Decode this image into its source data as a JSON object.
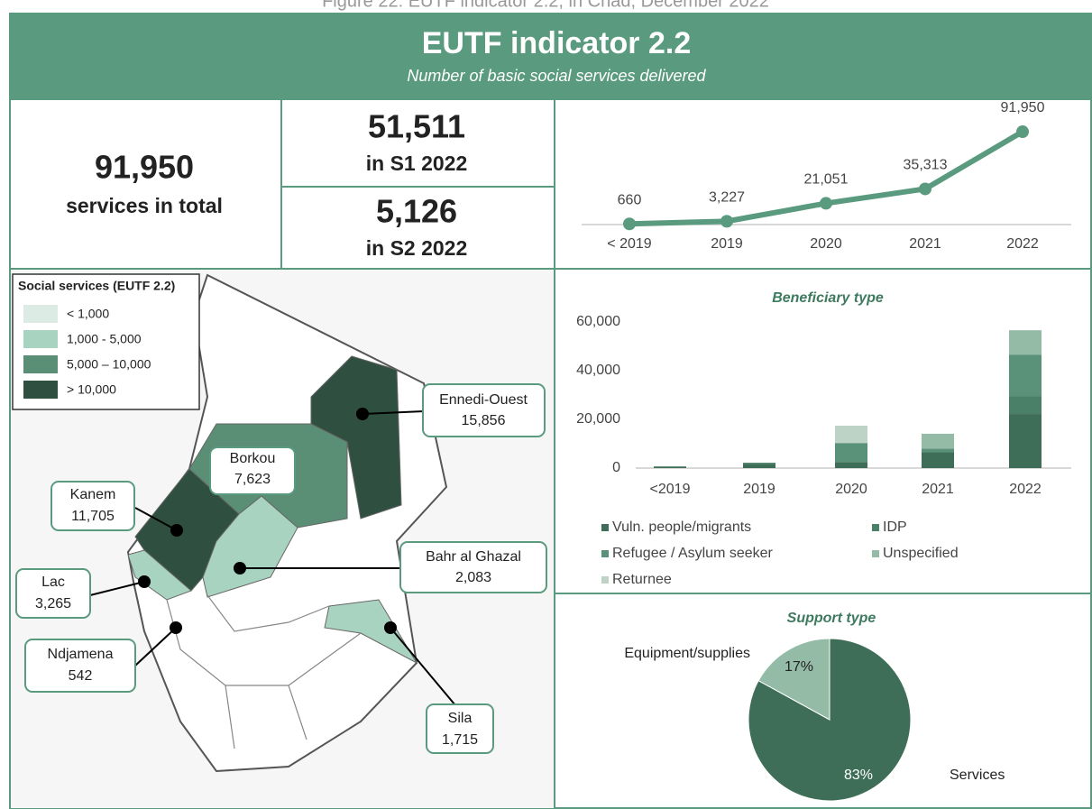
{
  "caption": "Figure 22: EUTF indicator 2.2, in Chad, December 2022",
  "header": {
    "title": "EUTF indicator 2.2",
    "subtitle": "Number of basic social services delivered"
  },
  "kpis": [
    {
      "value": "91,950",
      "label": "services in total"
    },
    {
      "value": "51,511",
      "label": "in S1 2022"
    },
    {
      "value": "5,126",
      "label": "in S2 2022"
    }
  ],
  "map": {
    "legend_title": "Social services (EUTF 2.2)",
    "legend": [
      "< 1,000",
      "1,000 - 5,000",
      "5,000 – 10,000",
      "> 10,000"
    ],
    "regions": [
      {
        "name": "Ennedi-Ouest",
        "value": "15,856"
      },
      {
        "name": "Borkou",
        "value": "7,623"
      },
      {
        "name": "Kanem",
        "value": "11,705"
      },
      {
        "name": "Bahr al Ghazal",
        "value": "2,083"
      },
      {
        "name": "Lac",
        "value": "3,265"
      },
      {
        "name": "Ndjamena",
        "value": "542"
      },
      {
        "name": "Sila",
        "value": "1,715"
      }
    ]
  },
  "chart_data": [
    {
      "type": "line",
      "categories": [
        "< 2019",
        "2019",
        "2020",
        "2021",
        "2022"
      ],
      "values": [
        660,
        3227,
        21051,
        35313,
        91950
      ],
      "value_labels": [
        "660",
        "3,227",
        "21,051",
        "35,313",
        "91,950"
      ],
      "color": "#5a9a7e",
      "ylim": [
        0,
        100000
      ]
    },
    {
      "type": "stacked_bar",
      "title": "Beneficiary type",
      "categories": [
        "<2019",
        "2019",
        "2020",
        "2021",
        "2022"
      ],
      "series": [
        {
          "name": "Vuln. people/migrants",
          "color": "#3e6e58",
          "values": [
            660,
            1800,
            2500,
            6500,
            22200
          ]
        },
        {
          "name": "IDP",
          "color": "#4a8068",
          "values": [
            0,
            400,
            0,
            0,
            7400
          ]
        },
        {
          "name": "Refugee / Asylum seeker",
          "color": "#5a9179",
          "values": [
            0,
            0,
            7800,
            1500,
            17000
          ]
        },
        {
          "name": "Unspecified",
          "color": "#93bba6",
          "values": [
            0,
            0,
            0,
            6100,
            10000
          ]
        },
        {
          "name": "Returnee",
          "color": "#bcd3c6",
          "values": [
            0,
            0,
            7100,
            0,
            0
          ]
        }
      ],
      "ylim": [
        0,
        60000
      ],
      "yticks": [
        0,
        {
          "value": 20000,
          "label": "20,000"
        },
        {
          "value": 40000,
          "label": "40,000"
        },
        {
          "value": 60000,
          "label": "60,000"
        }
      ],
      "grid": false
    },
    {
      "type": "pie",
      "title": "Support type",
      "categories": [
        "Services",
        "Equipment/supplies"
      ],
      "values": [
        83,
        17
      ],
      "value_labels": [
        "83%",
        "17%"
      ],
      "colors": [
        "#3e6e58",
        "#93bba6"
      ]
    }
  ]
}
